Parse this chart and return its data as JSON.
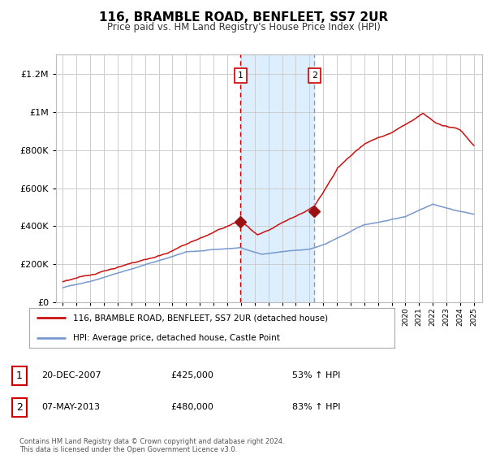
{
  "title": "116, BRAMBLE ROAD, BENFLEET, SS7 2UR",
  "subtitle": "Price paid vs. HM Land Registry's House Price Index (HPI)",
  "bg_color": "#ffffff",
  "plot_bg_color": "#ffffff",
  "grid_color": "#cccccc",
  "sale1_date": 2007.97,
  "sale1_price": 425000,
  "sale2_date": 2013.36,
  "sale2_price": 480000,
  "vline1_color": "#cc0000",
  "vline2_color": "#8899bb",
  "shade_color": "#ddeeff",
  "legend_label_red": "116, BRAMBLE ROAD, BENFLEET, SS7 2UR (detached house)",
  "legend_label_blue": "HPI: Average price, detached house, Castle Point",
  "footnote": "Contains HM Land Registry data © Crown copyright and database right 2024.\nThis data is licensed under the Open Government Licence v3.0.",
  "ylim": [
    0,
    1300000
  ],
  "xlim_start": 1994.5,
  "xlim_end": 2025.6,
  "red_line_color": "#cc1111",
  "blue_line_color": "#7799cc",
  "marker_color": "#991111",
  "box_edge_color": "#cc0000"
}
